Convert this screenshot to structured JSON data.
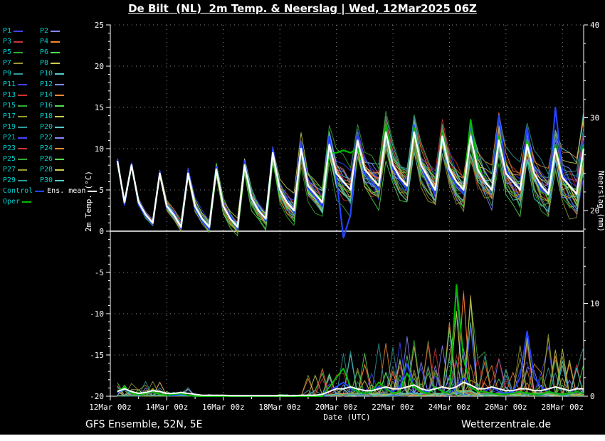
{
  "title": "De Bilt  (NL)  2m Temp. & Neerslag | Wed, 12Mar2025 06Z",
  "footer": {
    "left": "GFS Ensemble, 52N, 5E",
    "right": "Wetterzentrale.de"
  },
  "axes": {
    "left_label": "2m Temp. (°C)",
    "right_label": "Neerslag (mm)",
    "x_label": "Date (UTC)",
    "left_ticks": [
      25,
      20,
      15,
      10,
      5,
      0,
      -5,
      -10,
      -15,
      -20
    ],
    "right_ticks": [
      40,
      30,
      20,
      10,
      0
    ],
    "x_tick_labels": [
      "12Mar 00z",
      "14Mar 00z",
      "16Mar 00z",
      "18Mar 00z",
      "20Mar 00z",
      "22Mar 00z",
      "24Mar 00z",
      "26Mar 00z",
      "28Mar 00z"
    ],
    "temp_range": [
      -20,
      25
    ],
    "precip_range": [
      0,
      40
    ]
  },
  "colors": {
    "background": "#000000",
    "foreground": "#ffffff",
    "legend_text": "#00cccc",
    "grid": "#ffffff",
    "control": "#2244ff",
    "ens_mean": "#ffffff",
    "oper": "#00bb00"
  },
  "legend": {
    "members": [
      {
        "label": "P1",
        "color": "#4444ff"
      },
      {
        "label": "P2",
        "color": "#8888ff"
      },
      {
        "label": "P3",
        "color": "#cc3333"
      },
      {
        "label": "P4",
        "color": "#ee8833"
      },
      {
        "label": "P5",
        "color": "#33aa33"
      },
      {
        "label": "P6",
        "color": "#55dd55"
      },
      {
        "label": "P7",
        "color": "#999933"
      },
      {
        "label": "P8",
        "color": "#cccc55"
      },
      {
        "label": "P9",
        "color": "#339999"
      },
      {
        "label": "P10",
        "color": "#55cccc"
      },
      {
        "label": "P11",
        "color": "#4444ff"
      },
      {
        "label": "P12",
        "color": "#8888ff"
      },
      {
        "label": "P13",
        "color": "#cc3333"
      },
      {
        "label": "P14",
        "color": "#ee8833"
      },
      {
        "label": "P15",
        "color": "#33aa33"
      },
      {
        "label": "P16",
        "color": "#55dd55"
      },
      {
        "label": "P17",
        "color": "#999933"
      },
      {
        "label": "P18",
        "color": "#cccc55"
      },
      {
        "label": "P19",
        "color": "#339999"
      },
      {
        "label": "P20",
        "color": "#55cccc"
      },
      {
        "label": "P21",
        "color": "#4444ff"
      },
      {
        "label": "P22",
        "color": "#8888ff"
      },
      {
        "label": "P23",
        "color": "#cc3333"
      },
      {
        "label": "P24",
        "color": "#ee8833"
      },
      {
        "label": "P25",
        "color": "#33aa33"
      },
      {
        "label": "P26",
        "color": "#55dd55"
      },
      {
        "label": "P27",
        "color": "#999933"
      },
      {
        "label": "P28",
        "color": "#cccc55"
      },
      {
        "label": "P29",
        "color": "#339999"
      },
      {
        "label": "P30",
        "color": "#55cccc"
      }
    ],
    "control_label": "Control",
    "ens_mean_label": "Ens. mean",
    "oper_label": "Oper"
  },
  "chart_data": {
    "type": "line",
    "title": "De Bilt  (NL)  2m Temp. & Neerslag | Wed, 12Mar2025 06Z",
    "xlabel": "Date (UTC)",
    "ylabel_left": "2m Temp. (°C)",
    "ylabel_right": "Neerslag (mm)",
    "ylim_left": [
      -20,
      25
    ],
    "ylim_right": [
      0,
      40
    ],
    "x_start": "12Mar 06z",
    "time_step_hours": 6,
    "n_points": 67,
    "series": {
      "ens_mean_temp": [
        8.5,
        3.5,
        8,
        3.5,
        2,
        1,
        7,
        3,
        2,
        0.5,
        7,
        3,
        1.5,
        0.5,
        7.5,
        3,
        1.5,
        0.5,
        8,
        4,
        2.5,
        1.5,
        9.5,
        5,
        3.5,
        2.5,
        10,
        5.5,
        4.5,
        3.5,
        10.5,
        7,
        6,
        5,
        11,
        7.5,
        6.5,
        5.5,
        12,
        8,
        6.5,
        5.5,
        12,
        8,
        6.5,
        5,
        11.5,
        7.5,
        6,
        5,
        11.5,
        7.5,
        6,
        5,
        11,
        7,
        6,
        5,
        10.5,
        7,
        5.5,
        4.5,
        10,
        6.5,
        5.5,
        4.5,
        10
      ],
      "control_temp": [
        8.8,
        3.2,
        8.2,
        3.2,
        1.8,
        0.8,
        7.2,
        2.8,
        2.2,
        0.3,
        7.3,
        2.7,
        1.2,
        0.2,
        7.8,
        2.8,
        1.8,
        0.2,
        8.4,
        3.8,
        2.8,
        1.2,
        10,
        4.8,
        3.8,
        2.2,
        10.8,
        5.2,
        4.2,
        3,
        11.5,
        6.5,
        -0.8,
        2,
        11.5,
        7,
        6,
        5,
        12.5,
        7.5,
        6.2,
        5,
        12.8,
        7.8,
        6,
        4.5,
        12,
        7,
        5.5,
        4.5,
        13,
        7.5,
        6,
        5,
        14,
        7.5,
        6,
        5,
        12.5,
        7,
        5,
        4.5,
        15,
        7,
        5.5,
        4.5,
        11
      ],
      "oper_temp": [
        8.5,
        3.5,
        8,
        3.5,
        2,
        1,
        7,
        3,
        2,
        0.5,
        7,
        3,
        1.5,
        0.5,
        7.5,
        3,
        1.5,
        0.5,
        8,
        4,
        2.5,
        1.5,
        9.5,
        5,
        3.5,
        2.5,
        10,
        5.5,
        4.5,
        4,
        9.5,
        9.5,
        9.8,
        9.5,
        10,
        7.5,
        6.5,
        5.5,
        13,
        8,
        6.5,
        5.5,
        12.5,
        8,
        6.5,
        5,
        12,
        7.5,
        6,
        5,
        13.5,
        8,
        6,
        5,
        11.5,
        7,
        6,
        5,
        11,
        7,
        5.5,
        4.5,
        10.5,
        6.5,
        5.5,
        4.5,
        10.5
      ],
      "ens_mean_precip": [
        0.5,
        0.8,
        0.5,
        0.3,
        0.4,
        0.6,
        0.5,
        0.3,
        0.3,
        0.4,
        0.3,
        0.2,
        0.1,
        0.1,
        0.1,
        0.1,
        0.05,
        0.05,
        0.05,
        0.05,
        0.05,
        0.05,
        0.05,
        0.05,
        0.05,
        0.05,
        0.1,
        0.1,
        0.1,
        0.2,
        0.5,
        0.8,
        0.8,
        1,
        0.8,
        0.6,
        0.6,
        0.8,
        1,
        0.8,
        0.8,
        1,
        1.2,
        0.8,
        0.6,
        0.8,
        1,
        0.8,
        1,
        1.5,
        1.2,
        0.8,
        0.8,
        1,
        0.8,
        0.6,
        0.6,
        0.8,
        0.8,
        0.6,
        0.6,
        0.8,
        1,
        0.8,
        0.6,
        0.8,
        0.8
      ],
      "control_precip": [
        0.4,
        0.8,
        0.3,
        0.2,
        0.3,
        0.5,
        0.2,
        0.1,
        0.1,
        0.2,
        0.1,
        0,
        0,
        0,
        0,
        0,
        0,
        0,
        0,
        0,
        0,
        0,
        0,
        0,
        0,
        0,
        0,
        0,
        0,
        0,
        0.5,
        1,
        1.5,
        0.8,
        0.5,
        0.3,
        0.5,
        1,
        0.8,
        0.5,
        1,
        3.5,
        1,
        0.5,
        0.5,
        1,
        0.5,
        0.3,
        1,
        2,
        1,
        0.5,
        0.5,
        1,
        0.5,
        0.3,
        0.5,
        2,
        7,
        2,
        1,
        0.5,
        0.3,
        0.2,
        0.3,
        0.5,
        0.3
      ],
      "oper_precip": [
        0.5,
        1,
        0.3,
        0.2,
        0.3,
        0.5,
        0.2,
        0.1,
        0.2,
        0.3,
        0.1,
        0,
        0,
        0,
        0,
        0,
        0,
        0,
        0,
        0,
        0,
        0,
        0,
        0,
        0,
        0,
        0,
        0,
        0,
        0,
        1,
        2,
        3,
        1,
        0.5,
        0.3,
        0.5,
        1.5,
        0.8,
        0.3,
        0.5,
        2.5,
        1,
        0.5,
        0.3,
        1,
        0.5,
        0.3,
        12,
        4,
        1,
        0.5,
        0.5,
        0.3,
        0.2,
        0.2,
        0.3,
        0.5,
        0.3,
        0.2,
        0.2,
        0.5,
        0.3,
        0.2,
        0.3,
        0.5,
        0.3
      ]
    },
    "ensemble_envelope": {
      "member_count": 30,
      "temp_spread_by_day": [
        0.4,
        0.6,
        0.8,
        1,
        1.2,
        1.5,
        2,
        2.5,
        3,
        3.5,
        3.5,
        3.5,
        4,
        4,
        4,
        4.2,
        4.5
      ],
      "precip_spread_by_day": [
        0.8,
        0.8,
        0.5,
        0.1,
        0.05,
        0.05,
        0.1,
        1.5,
        2.5,
        3,
        3.5,
        3,
        6,
        3,
        3.5,
        3.5,
        3
      ]
    },
    "legend_entries": [
      "P1",
      "P2",
      "P3",
      "P4",
      "P5",
      "P6",
      "P7",
      "P8",
      "P9",
      "P10",
      "P11",
      "P12",
      "P13",
      "P14",
      "P15",
      "P16",
      "P17",
      "P18",
      "P19",
      "P20",
      "P21",
      "P22",
      "P23",
      "P24",
      "P25",
      "P26",
      "P27",
      "P28",
      "P29",
      "P30",
      "Control",
      "Ens. mean",
      "Oper"
    ],
    "legend_position": "top-left",
    "grid": true
  }
}
